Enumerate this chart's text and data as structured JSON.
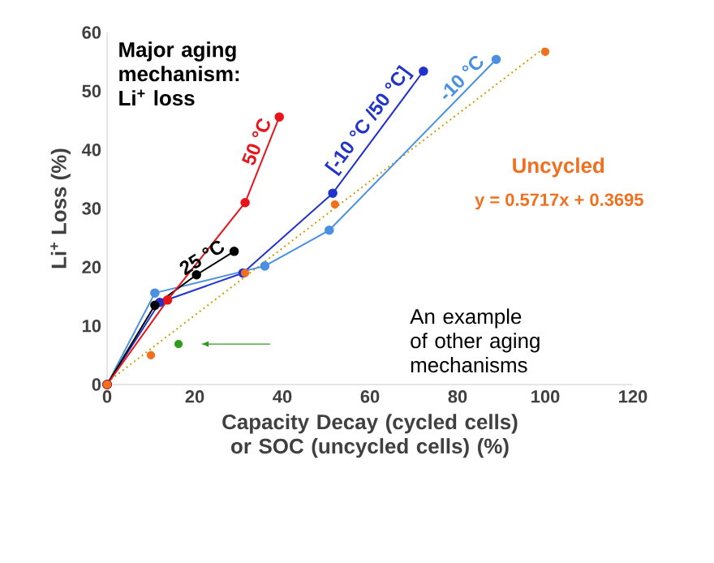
{
  "chart_data": {
    "type": "line",
    "xlabel": "Capacity Decay (cycled cells) or SOC (uncycled cells) (%)",
    "ylabel": "Li$^{+}$ Loss (%)",
    "xlim": [
      0,
      120
    ],
    "ylim": [
      0,
      60
    ],
    "xticks": [
      0,
      20,
      40,
      60,
      80,
      100,
      120
    ],
    "yticks": [
      0,
      10,
      20,
      30,
      40,
      50,
      60
    ],
    "marker": "circle",
    "grid": false,
    "legend": false,
    "series": [
      {
        "name": "Uncycled",
        "color": "#f07020",
        "type": "scatter",
        "x": [
          0,
          10,
          31.5,
          52,
          100
        ],
        "values": [
          0,
          5,
          19,
          30.7,
          56.7
        ]
      },
      {
        "type": "line",
        "color": "#c8a000",
        "marker": "none",
        "line_style": "dotted",
        "x": [
          0,
          100
        ],
        "values": [
          0.37,
          57.5
        ]
      },
      {
        "name": "-10 °C",
        "color": "#4a90e2",
        "x": [
          0,
          10.9,
          36,
          50.7,
          88.8
        ],
        "values": [
          0,
          15.6,
          20.2,
          26.3,
          55.4
        ]
      },
      {
        "name": "[-10 °C /50 °C]",
        "color": "#2233cc",
        "x": [
          0,
          12,
          31,
          51.5,
          72.2
        ],
        "values": [
          0,
          14,
          19,
          32.6,
          53.4
        ]
      },
      {
        "name": "25 °C",
        "color": "#000000",
        "x": [
          0,
          10.9,
          20.4,
          29
        ],
        "values": [
          0,
          13.5,
          18.7,
          22.7
        ]
      },
      {
        "name": "50 °C",
        "color": "#e8141c",
        "x": [
          0,
          13.8,
          31.5,
          39.3
        ],
        "values": [
          0,
          14.4,
          31,
          45.6
        ]
      },
      {
        "type": "scatter",
        "color": "#2e9a1e",
        "x": [
          16.3
        ],
        "values": [
          6.9
        ]
      }
    ],
    "annotations": [
      "Major aging mechanism: Li$^{+}$ loss",
      "y = 0.5717x + 0.3695",
      "An example of other aging mechanisms"
    ]
  }
}
